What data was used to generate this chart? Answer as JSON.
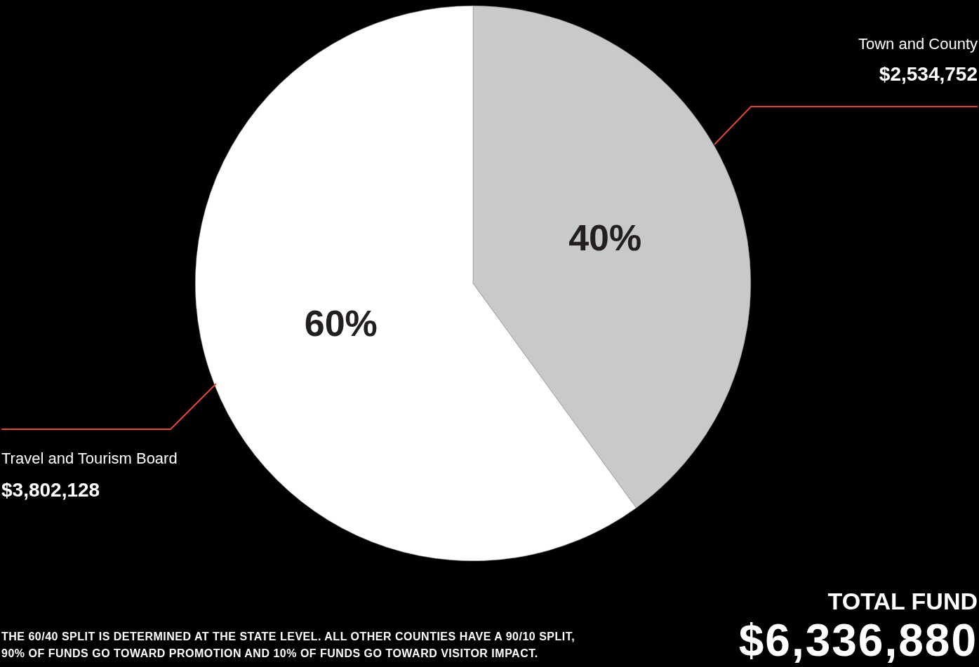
{
  "chart_data": {
    "type": "pie",
    "title": "TOTAL FUND",
    "categories": [
      "Town and County",
      "Travel and Tourism Board"
    ],
    "values": [
      40,
      60
    ],
    "colors": [
      "#c8c9cb",
      "#ffffff"
    ],
    "value_labels": [
      "40%",
      "60%"
    ],
    "legend": false,
    "annotations": [
      "$2,534,752",
      "$3,802,128",
      "THE 60/40 SPLIT IS DETERMINED AT THE STATE LEVEL. ALL OTHER COUNTIES HAVE A 90/10 SPLIT, 90% OF FUNDS GO TOWARD PROMOTION AND 10% OF FUNDS GO TOWARD VISITOR IMPACT.",
      "$6,336,880"
    ]
  }
}
